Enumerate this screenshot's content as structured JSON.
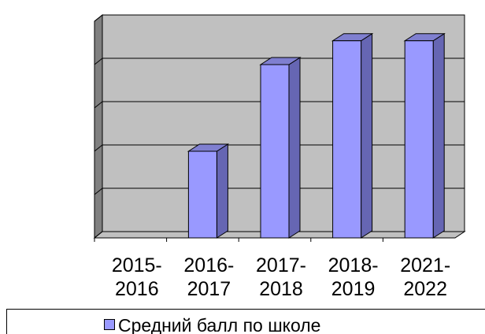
{
  "chart_data": {
    "type": "bar3d",
    "categories": [
      "2015-2016",
      "2016-2017",
      "2017-2018",
      "2018-2019",
      "2021-2022"
    ],
    "series": [
      {
        "name": "Средний балл по школе",
        "color": "#9999ff",
        "values": [
          0,
          2,
          4,
          4.55,
          4.55
        ]
      }
    ],
    "ylim": [
      0,
      5
    ],
    "yticks": [
      0,
      1,
      2,
      3,
      4,
      5
    ],
    "grid": true
  }
}
